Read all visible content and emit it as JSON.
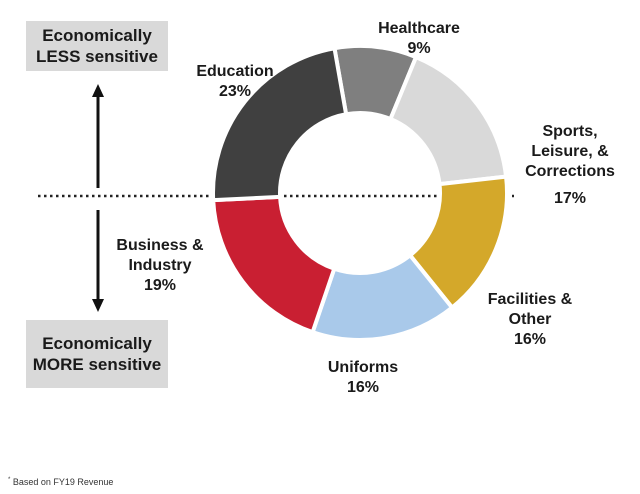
{
  "sensitivity": {
    "top_line1": "Economically",
    "top_line2": "LESS sensitive",
    "bottom_line1": "Economically",
    "bottom_line2": "MORE sensitive"
  },
  "footnote": {
    "marker": "*",
    "text": "Based on FY19 Revenue"
  },
  "chart_data": {
    "type": "pie",
    "variant": "donut",
    "categories": [
      "Healthcare",
      "Sports, Leisure, & Corrections",
      "Facilities & Other",
      "Uniforms",
      "Business & Industry",
      "Education"
    ],
    "values": [
      9,
      17,
      16,
      16,
      19,
      23
    ],
    "value_labels": [
      "9%",
      "17%",
      "16%",
      "16%",
      "19%",
      "23%"
    ],
    "label_lines": [
      [
        "Healthcare"
      ],
      [
        "Sports,",
        "Leisure, &",
        "Corrections"
      ],
      [
        "Facilities &",
        "Other"
      ],
      [
        "Uniforms"
      ],
      [
        "Business &",
        "Industry"
      ],
      [
        "Education"
      ]
    ],
    "colors": [
      "#7f7f7f",
      "#d9d9d9",
      "#d4a82a",
      "#a9c9ea",
      "#c91f32",
      "#404040"
    ],
    "start_angle_deg": 350,
    "direction": "clockwise",
    "unit": "%"
  }
}
